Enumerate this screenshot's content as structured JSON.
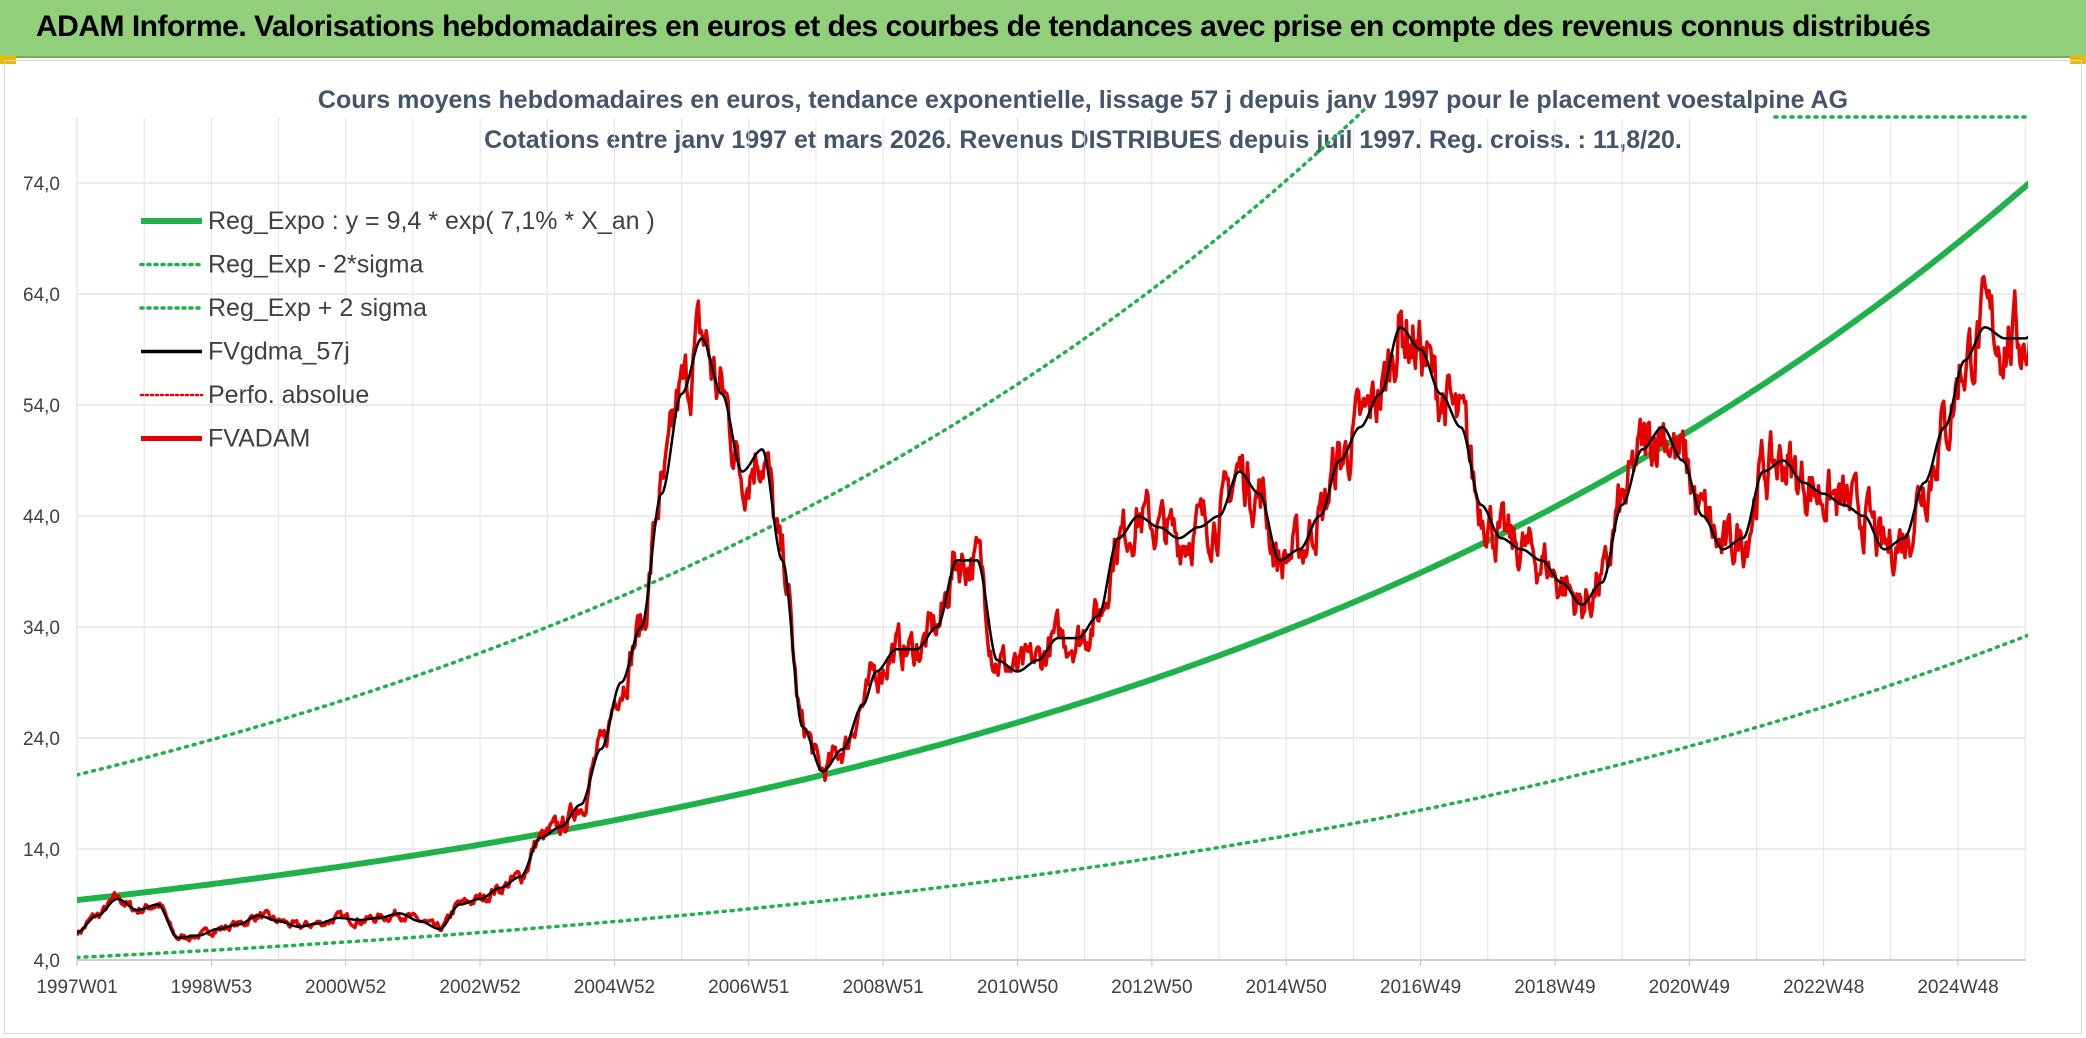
{
  "banner": {
    "title": "ADAM Informe. Valorisations hebdomadaires en euros et des courbes de tendances avec prise en compte des revenus connus distribués"
  },
  "chart_data": {
    "type": "line",
    "title": "Cours moyens hebdomadaires en euros, tendance exponentielle, lissage 57 j depuis janv 1997 pour le placement voestalpine AG",
    "subtitle": "Cotations entre janv 1997 et mars 2026. Revenus DISTRIBUES depuis juil 1997. Reg. croiss. : 11,8/20.",
    "xlabel": "",
    "ylabel": "",
    "xlim": [
      1997.0,
      2026.2
    ],
    "ylim": [
      4.0,
      80.0
    ],
    "y_ticks": [
      "4,0",
      "14,0",
      "24,0",
      "34,0",
      "44,0",
      "54,0",
      "64,0",
      "74,0"
    ],
    "y_tick_values": [
      4,
      14,
      24,
      34,
      44,
      54,
      64,
      74
    ],
    "x_ticks": [
      "1997W01",
      "1998W53",
      "2000W52",
      "2002W52",
      "2004W52",
      "2006W51",
      "2008W51",
      "2010W50",
      "2012W50",
      "2014W50",
      "2016W49",
      "2018W49",
      "2020W49",
      "2022W48",
      "2024W48"
    ],
    "x_tick_values": [
      1997.0,
      1999.0,
      2001.0,
      2003.0,
      2005.0,
      2007.0,
      2009.0,
      2011.0,
      2013.0,
      2015.0,
      2017.0,
      2019.0,
      2021.0,
      2023.0,
      2025.0
    ],
    "grid": true,
    "legend_position": "top-left",
    "regression": {
      "a": 9.4,
      "rate": 0.071,
      "sigma_factor_low": 0.45,
      "sigma_factor_high": 2.2
    },
    "series": [
      {
        "name": "Reg_Expo : y = 9,4 * exp( 7,1% *  X_an )",
        "color": "#1fb24a",
        "style": "solid-thick"
      },
      {
        "name": "Reg_Exp - 2*sigma",
        "color": "#1fb24a",
        "style": "dotted"
      },
      {
        "name": "Reg_Exp + 2 sigma",
        "color": "#1fb24a",
        "style": "dotted"
      },
      {
        "name": "FVgdma_57j",
        "color": "#000000",
        "style": "solid",
        "x": [
          1997.0,
          1997.3,
          1997.6,
          1997.9,
          1998.2,
          1998.5,
          1998.8,
          1999.1,
          1999.4,
          1999.7,
          2000.0,
          2000.3,
          2000.6,
          2000.9,
          2001.2,
          2001.5,
          2001.8,
          2002.1,
          2002.4,
          2002.7,
          2003.0,
          2003.3,
          2003.6,
          2003.9,
          2004.2,
          2004.5,
          2004.8,
          2005.1,
          2005.4,
          2005.7,
          2006.0,
          2006.3,
          2006.6,
          2006.9,
          2007.2,
          2007.5,
          2007.8,
          2008.1,
          2008.4,
          2008.7,
          2008.9,
          2009.2,
          2009.5,
          2009.8,
          2010.1,
          2010.4,
          2010.7,
          2011.0,
          2011.3,
          2011.6,
          2011.9,
          2012.2,
          2012.5,
          2012.8,
          2013.1,
          2013.4,
          2013.7,
          2014.0,
          2014.3,
          2014.6,
          2014.9,
          2015.2,
          2015.5,
          2015.8,
          2016.1,
          2016.4,
          2016.7,
          2017.0,
          2017.3,
          2017.6,
          2017.9,
          2018.2,
          2018.5,
          2018.8,
          2019.1,
          2019.4,
          2019.7,
          2020.0,
          2020.3,
          2020.6,
          2020.9,
          2021.2,
          2021.5,
          2021.8,
          2022.1,
          2022.4,
          2022.7,
          2023.0,
          2023.3,
          2023.6,
          2023.9,
          2024.2,
          2024.5,
          2024.8,
          2025.1,
          2025.4,
          2025.7,
          2026.0,
          2026.2
        ],
        "values": [
          6.5,
          8.0,
          9.5,
          8.5,
          9.0,
          6.0,
          6.2,
          6.8,
          7.2,
          8.0,
          7.5,
          7.0,
          7.3,
          7.8,
          7.6,
          7.8,
          8.2,
          7.5,
          6.8,
          9.0,
          9.5,
          10.5,
          11.5,
          15.0,
          16.0,
          18.0,
          23.0,
          29.0,
          34.0,
          46.0,
          55.0,
          60.0,
          55.0,
          48.0,
          50.0,
          40.0,
          25.0,
          21.0,
          23.0,
          27.0,
          30.0,
          32.0,
          32.0,
          34.0,
          40.0,
          40.0,
          31.0,
          30.0,
          31.0,
          33.0,
          33.0,
          35.0,
          42.0,
          44.0,
          43.0,
          42.0,
          43.0,
          44.0,
          48.0,
          46.0,
          40.0,
          41.0,
          44.0,
          49.0,
          52.0,
          55.0,
          61.0,
          59.0,
          55.0,
          52.0,
          45.0,
          42.0,
          41.0,
          40.0,
          38.0,
          36.0,
          38.0,
          45.0,
          50.0,
          52.0,
          49.0,
          44.0,
          41.0,
          42.0,
          48.0,
          49.0,
          47.0,
          46.0,
          45.0,
          44.0,
          41.0,
          42.0,
          47.0,
          52.0,
          58.0,
          61.0,
          60.0,
          60.0,
          61.0
        ]
      },
      {
        "name": "Perfo. absolue",
        "color": "#e60000",
        "style": "dotted"
      },
      {
        "name": "FVADAM",
        "color": "#e60000",
        "style": "solid-thick"
      }
    ]
  }
}
